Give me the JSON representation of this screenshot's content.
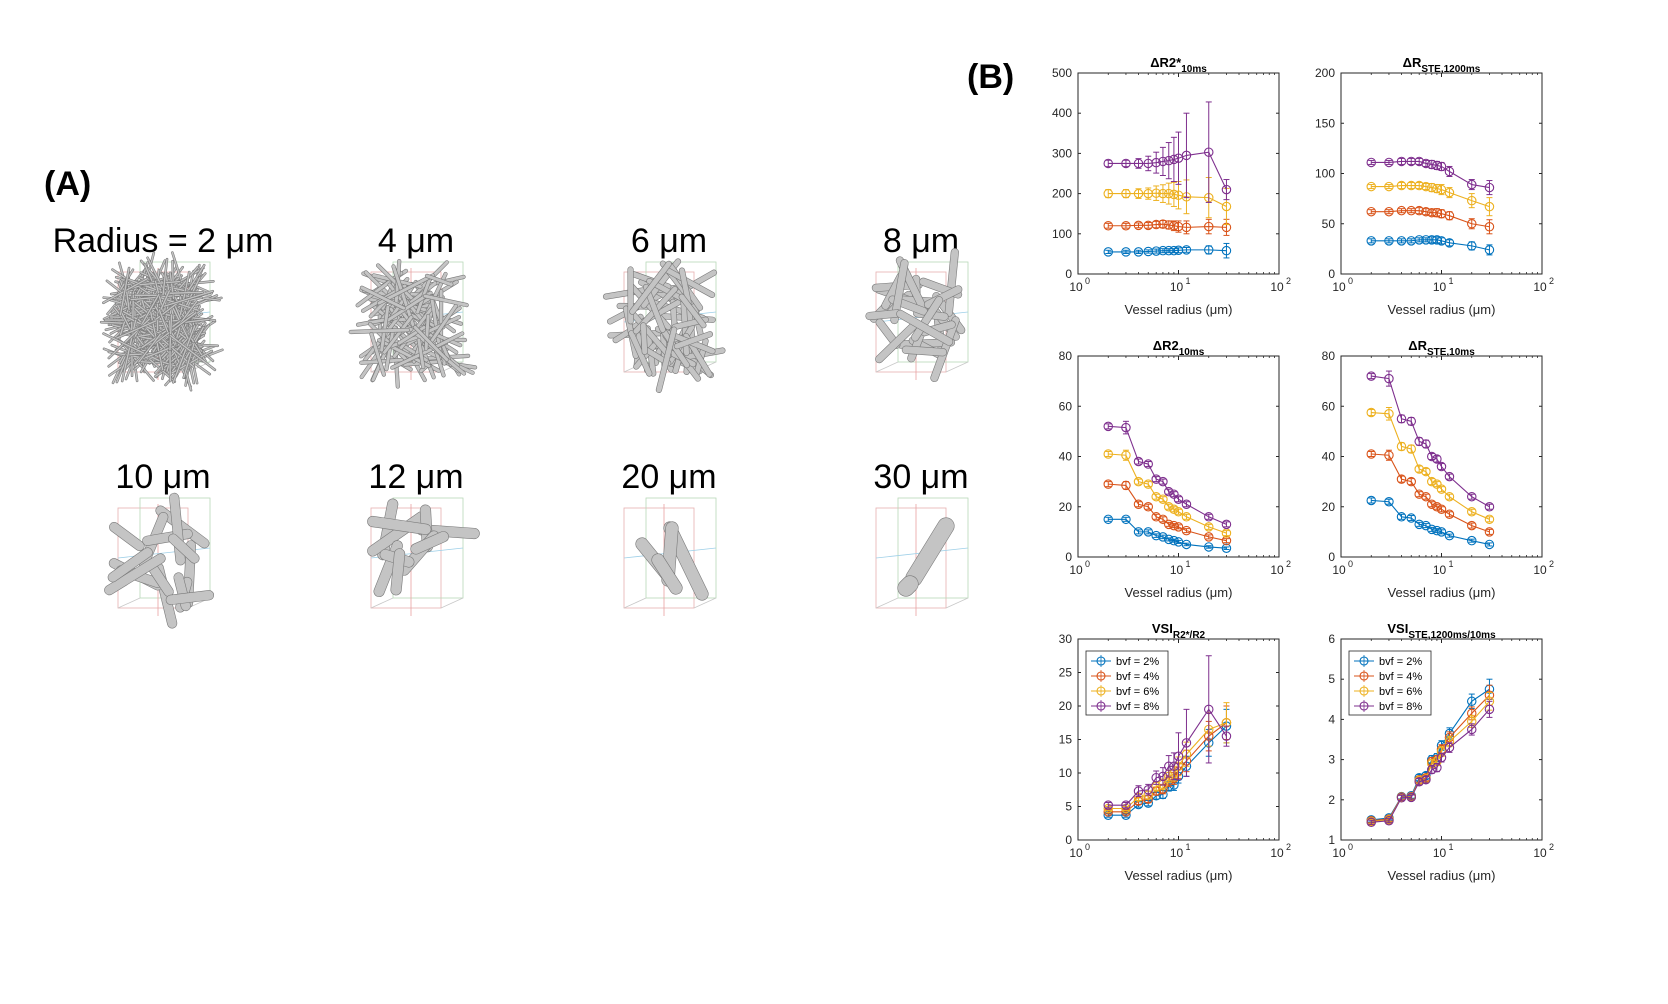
{
  "panel_a": {
    "letter": "(A)",
    "labels": [
      "Radius = 2 μm",
      "4 μm",
      "6 μm",
      "8 μm",
      "10 μm",
      "12 μm",
      "20 μm",
      "30 μm"
    ]
  },
  "panel_b": {
    "letter": "(B)"
  },
  "colors": {
    "bvf2": "#0072BD",
    "bvf4": "#D95319",
    "bvf6": "#EDB120",
    "bvf8": "#7E2F8E"
  },
  "chart_data": [
    {
      "type": "line",
      "title_main": "ΔR2*",
      "title_sub": "10ms",
      "xlabel": "Vessel radius (μm)",
      "xscale": "log",
      "xlim": [
        1,
        100
      ],
      "xticks": [
        1,
        10,
        100
      ],
      "xtick_labels": [
        "10",
        "10",
        "10"
      ],
      "xtick_exps": [
        "0",
        "1",
        "2"
      ],
      "ylim": [
        0,
        500
      ],
      "yticks": [
        0,
        100,
        200,
        300,
        400,
        500
      ],
      "ytick_labels": [
        "0",
        "100",
        "200",
        "300",
        "400",
        "500"
      ],
      "legend": null,
      "x": [
        2,
        3,
        4,
        5,
        6,
        7,
        8,
        9,
        10,
        12,
        20,
        30
      ],
      "series": [
        {
          "values": [
            55,
            55,
            55,
            56,
            57,
            58,
            58,
            58,
            59,
            60,
            60,
            58
          ],
          "err": [
            4,
            4,
            4,
            4,
            5,
            5,
            5,
            5,
            6,
            6,
            10,
            18
          ]
        },
        {
          "values": [
            120,
            120,
            121,
            121,
            123,
            124,
            122,
            120,
            118,
            116,
            118,
            116
          ],
          "err": [
            6,
            6,
            6,
            7,
            8,
            9,
            10,
            12,
            14,
            16,
            18,
            20
          ]
        },
        {
          "values": [
            200,
            200,
            200,
            200,
            201,
            200,
            200,
            198,
            196,
            192,
            190,
            168
          ],
          "err": [
            10,
            10,
            12,
            14,
            18,
            22,
            26,
            30,
            34,
            42,
            50,
            45
          ]
        },
        {
          "values": [
            275,
            275,
            275,
            275,
            277,
            280,
            282,
            285,
            288,
            295,
            303,
            210
          ],
          "err": [
            8,
            8,
            12,
            18,
            26,
            35,
            45,
            55,
            65,
            105,
            125,
            25
          ]
        }
      ]
    },
    {
      "type": "line",
      "title_main": "ΔR",
      "title_sub": "STE,1200ms",
      "xlabel": "Vessel radius (μm)",
      "xscale": "log",
      "xlim": [
        1,
        100
      ],
      "xticks": [
        1,
        10,
        100
      ],
      "xtick_labels": [
        "10",
        "10",
        "10"
      ],
      "xtick_exps": [
        "0",
        "1",
        "2"
      ],
      "ylim": [
        0,
        200
      ],
      "yticks": [
        0,
        50,
        100,
        150,
        200
      ],
      "ytick_labels": [
        "0",
        "50",
        "100",
        "150",
        "200"
      ],
      "legend": null,
      "x": [
        2,
        3,
        4,
        5,
        6,
        7,
        8,
        9,
        10,
        12,
        20,
        30
      ],
      "series": [
        {
          "values": [
            33,
            33,
            33,
            33,
            34,
            34,
            34,
            34,
            33,
            31,
            28,
            24
          ],
          "err": [
            2,
            2,
            2,
            2,
            2,
            2,
            3,
            3,
            3,
            3,
            4,
            5
          ]
        },
        {
          "values": [
            62,
            62,
            63,
            63,
            63,
            62,
            61,
            61,
            60,
            58,
            50,
            47
          ],
          "err": [
            2,
            2,
            2,
            2,
            3,
            3,
            3,
            4,
            4,
            4,
            5,
            7
          ]
        },
        {
          "values": [
            87,
            87,
            88,
            88,
            88,
            87,
            86,
            85,
            84,
            81,
            73,
            67
          ],
          "err": [
            2,
            2,
            3,
            3,
            3,
            3,
            4,
            4,
            5,
            5,
            7,
            9
          ]
        },
        {
          "values": [
            111,
            111,
            112,
            112,
            112,
            110,
            109,
            108,
            107,
            102,
            89,
            86
          ],
          "err": [
            2,
            2,
            3,
            3,
            3,
            3,
            4,
            4,
            4,
            5,
            5,
            7
          ]
        }
      ]
    },
    {
      "type": "line",
      "title_main": "ΔR2",
      "title_sub": "10ms",
      "xlabel": "Vessel radius (μm)",
      "xscale": "log",
      "xlim": [
        1,
        100
      ],
      "xticks": [
        1,
        10,
        100
      ],
      "xtick_labels": [
        "10",
        "10",
        "10"
      ],
      "xtick_exps": [
        "0",
        "1",
        "2"
      ],
      "ylim": [
        0,
        80
      ],
      "yticks": [
        0,
        20,
        40,
        60,
        80
      ],
      "ytick_labels": [
        "0",
        "20",
        "40",
        "60",
        "80"
      ],
      "legend": null,
      "x": [
        2,
        3,
        4,
        5,
        6,
        7,
        8,
        9,
        10,
        12,
        20,
        30
      ],
      "series": [
        {
          "values": [
            15,
            15,
            10,
            10,
            8.5,
            8,
            7,
            6.5,
            6,
            5,
            4,
            3.5
          ],
          "err": [
            0.8,
            0.8,
            0.8,
            0.8,
            0.7,
            0.7,
            0.6,
            0.6,
            0.6,
            0.5,
            0.5,
            0.5
          ]
        },
        {
          "values": [
            29,
            28.5,
            21,
            20,
            16,
            15,
            13,
            12.5,
            12,
            10.5,
            8,
            6.5
          ],
          "err": [
            1,
            1.5,
            1,
            1,
            1,
            1,
            0.8,
            0.8,
            0.8,
            0.8,
            0.8,
            0.8
          ]
        },
        {
          "values": [
            41,
            40.5,
            30,
            29,
            24,
            23,
            20,
            19,
            18,
            16,
            12,
            9.5
          ],
          "err": [
            1,
            2,
            1,
            1,
            1,
            1,
            1,
            1,
            1,
            1,
            1,
            1
          ]
        },
        {
          "values": [
            52,
            51.5,
            38,
            37,
            31,
            30,
            26,
            25,
            23,
            21,
            16,
            13
          ],
          "err": [
            1,
            2.5,
            1,
            1,
            1,
            1,
            1,
            1,
            1,
            1,
            1,
            1
          ]
        }
      ]
    },
    {
      "type": "line",
      "title_main": "ΔR",
      "title_sub": "STE,10ms",
      "xlabel": "Vessel radius (μm)",
      "xscale": "log",
      "xlim": [
        1,
        100
      ],
      "xticks": [
        1,
        10,
        100
      ],
      "xtick_labels": [
        "10",
        "10",
        "10"
      ],
      "xtick_exps": [
        "0",
        "1",
        "2"
      ],
      "ylim": [
        0,
        80
      ],
      "yticks": [
        0,
        20,
        40,
        60,
        80
      ],
      "ytick_labels": [
        "0",
        "20",
        "40",
        "60",
        "80"
      ],
      "legend": null,
      "x": [
        2,
        3,
        4,
        5,
        6,
        7,
        8,
        9,
        10,
        12,
        20,
        30
      ],
      "series": [
        {
          "values": [
            22.5,
            22,
            16,
            15.5,
            13,
            12.5,
            11,
            10.5,
            10,
            8.5,
            6.5,
            5
          ],
          "err": [
            1,
            1,
            1,
            1,
            0.8,
            0.8,
            0.8,
            0.8,
            0.8,
            0.6,
            0.6,
            0.6
          ]
        },
        {
          "values": [
            41,
            40.5,
            31,
            30,
            25,
            24,
            21,
            20,
            19,
            17,
            12.5,
            10
          ],
          "err": [
            1,
            2,
            1.2,
            1.2,
            1,
            1,
            1,
            1,
            1,
            1,
            1,
            1
          ]
        },
        {
          "values": [
            57.5,
            57,
            44,
            43,
            35,
            34,
            30,
            29,
            27,
            24,
            18,
            15
          ],
          "err": [
            1.2,
            2.5,
            1.5,
            1.5,
            1.2,
            1.2,
            1.2,
            1,
            1,
            1,
            1,
            1
          ]
        },
        {
          "values": [
            72,
            71,
            55,
            54,
            46,
            45,
            40,
            39,
            36,
            32,
            24,
            20
          ],
          "err": [
            1,
            3,
            1.5,
            1.5,
            1.5,
            1.5,
            1.2,
            1.2,
            1.2,
            1,
            1,
            1
          ]
        }
      ]
    },
    {
      "type": "line",
      "title_main": "VSI",
      "title_sub": "R2*/R2",
      "xlabel": "Vessel radius (μm)",
      "xscale": "log",
      "xlim": [
        1,
        100
      ],
      "xticks": [
        1,
        10,
        100
      ],
      "xtick_labels": [
        "10",
        "10",
        "10"
      ],
      "xtick_exps": [
        "0",
        "1",
        "2"
      ],
      "ylim": [
        0,
        30
      ],
      "yticks": [
        0,
        5,
        10,
        15,
        20,
        25,
        30
      ],
      "ytick_labels": [
        "0",
        "5",
        "10",
        "15",
        "20",
        "25",
        "30"
      ],
      "legend": [
        "bvf = 2%",
        "bvf = 4%",
        "bvf = 6%",
        "bvf = 8%"
      ],
      "legend_position": "top-left",
      "x": [
        2,
        3,
        4,
        5,
        6,
        7,
        8,
        9,
        10,
        12,
        20,
        30
      ],
      "series": [
        {
          "values": [
            3.7,
            3.7,
            5.3,
            5.5,
            6.6,
            6.8,
            8,
            8.2,
            9.5,
            11,
            14.5,
            17
          ],
          "err": [
            0.3,
            0.3,
            0.4,
            0.4,
            0.5,
            0.6,
            0.7,
            0.8,
            1,
            1.5,
            2,
            2.5
          ]
        },
        {
          "values": [
            4.2,
            4.2,
            5.8,
            6.1,
            7.3,
            7.6,
            8.8,
            9.2,
            10.3,
            11.8,
            15.5,
            17.5
          ],
          "err": [
            0.3,
            0.3,
            0.5,
            0.5,
            0.6,
            0.7,
            0.8,
            0.9,
            1.1,
            1.6,
            2.2,
            2.5
          ]
        },
        {
          "values": [
            4.7,
            4.7,
            6.4,
            6.7,
            8,
            8.3,
            9.5,
            9.9,
            11,
            12.8,
            16.5,
            17.5
          ],
          "err": [
            0.3,
            0.3,
            0.5,
            0.6,
            0.7,
            0.8,
            0.9,
            1.1,
            1.4,
            1.8,
            2.5,
            3
          ]
        },
        {
          "values": [
            5.2,
            5.2,
            7.3,
            7.5,
            9.3,
            9.5,
            11,
            11,
            12.5,
            14.5,
            19.5,
            15.5
          ],
          "err": [
            0.4,
            0.4,
            0.8,
            0.8,
            1,
            1.3,
            1.6,
            2,
            3.5,
            5,
            8,
            1.5
          ]
        }
      ]
    },
    {
      "type": "line",
      "title_main": "VSI",
      "title_sub": "STE,1200ms/10ms",
      "xlabel": "Vessel radius (μm)",
      "xscale": "log",
      "xlim": [
        1,
        100
      ],
      "xticks": [
        1,
        10,
        100
      ],
      "xtick_labels": [
        "10",
        "10",
        "10"
      ],
      "xtick_exps": [
        "0",
        "1",
        "2"
      ],
      "ylim": [
        1,
        6
      ],
      "yticks": [
        1,
        2,
        3,
        4,
        5,
        6
      ],
      "ytick_labels": [
        "1",
        "2",
        "3",
        "4",
        "5",
        "6"
      ],
      "legend": [
        "bvf = 2%",
        "bvf = 4%",
        "bvf = 6%",
        "bvf = 8%"
      ],
      "legend_position": "top-left",
      "x": [
        2,
        3,
        4,
        5,
        6,
        7,
        8,
        9,
        10,
        12,
        20,
        30
      ],
      "series": [
        {
          "values": [
            1.5,
            1.55,
            2.08,
            2.1,
            2.55,
            2.6,
            3,
            3.05,
            3.35,
            3.65,
            4.45,
            4.75
          ],
          "err": [
            0.05,
            0.05,
            0.06,
            0.06,
            0.08,
            0.08,
            0.1,
            0.1,
            0.12,
            0.14,
            0.18,
            0.25
          ]
        },
        {
          "values": [
            1.48,
            1.52,
            2.07,
            2.08,
            2.5,
            2.55,
            2.95,
            3,
            3.25,
            3.55,
            4.15,
            4.6
          ],
          "err": [
            0.05,
            0.05,
            0.06,
            0.06,
            0.08,
            0.08,
            0.1,
            0.1,
            0.12,
            0.14,
            0.16,
            0.25
          ]
        },
        {
          "values": [
            1.46,
            1.5,
            2.06,
            2.07,
            2.48,
            2.52,
            2.9,
            2.95,
            3.2,
            3.45,
            3.95,
            4.45
          ],
          "err": [
            0.05,
            0.05,
            0.06,
            0.06,
            0.08,
            0.08,
            0.1,
            0.1,
            0.12,
            0.13,
            0.15,
            0.22
          ]
        },
        {
          "values": [
            1.44,
            1.48,
            2.05,
            2.06,
            2.45,
            2.5,
            2.75,
            2.8,
            3.05,
            3.3,
            3.75,
            4.25
          ],
          "err": [
            0.05,
            0.05,
            0.06,
            0.06,
            0.08,
            0.08,
            0.09,
            0.1,
            0.11,
            0.12,
            0.14,
            0.2
          ]
        }
      ]
    }
  ]
}
